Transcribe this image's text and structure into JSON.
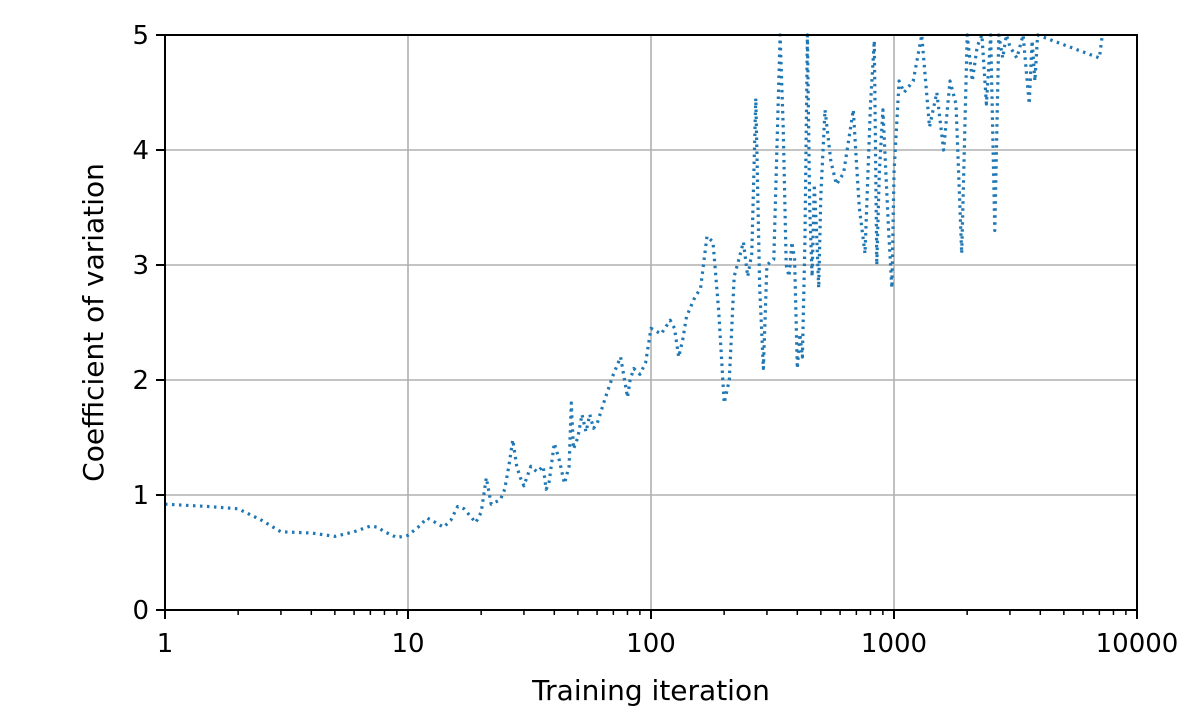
{
  "chart_data": {
    "type": "line",
    "title": "",
    "xlabel": "Training iteration",
    "ylabel": "Coefficient of variation",
    "x_scale": "log",
    "xlim": [
      1,
      10000
    ],
    "ylim": [
      0,
      5
    ],
    "x_ticks": [
      1,
      10,
      100,
      1000,
      10000
    ],
    "x_tick_labels": [
      "1",
      "10",
      "100",
      "1000",
      "10000"
    ],
    "y_ticks": [
      0,
      1,
      2,
      3,
      4,
      5
    ],
    "y_tick_labels": [
      "0",
      "1",
      "2",
      "3",
      "4",
      "5"
    ],
    "grid": true,
    "line_style": "dotted",
    "series": [
      {
        "color": "#1f77b4",
        "x": [
          1,
          1.5,
          2,
          2.5,
          3,
          4,
          5,
          6,
          7,
          7.5,
          8,
          9,
          10,
          11,
          12,
          13,
          14,
          15,
          16,
          17,
          18,
          19,
          20,
          21,
          22,
          24,
          25,
          26,
          27,
          28,
          29,
          30,
          32,
          34,
          36,
          37,
          38,
          40,
          42,
          43,
          44,
          46,
          47,
          48,
          49,
          50,
          52,
          54,
          56,
          58,
          60,
          65,
          70,
          75,
          80,
          82,
          85,
          90,
          95,
          100,
          110,
          120,
          125,
          130,
          135,
          140,
          150,
          160,
          170,
          180,
          190,
          200,
          210,
          220,
          230,
          240,
          250,
          260,
          270,
          280,
          290,
          300,
          320,
          340,
          350,
          360,
          370,
          380,
          390,
          400,
          410,
          420,
          430,
          440,
          450,
          460,
          470,
          480,
          490,
          500,
          520,
          550,
          580,
          620,
          680,
          700,
          720,
          760,
          800,
          830,
          850,
          870,
          900,
          950,
          980,
          1000,
          1050,
          1100,
          1200,
          1300,
          1400,
          1500,
          1600,
          1700,
          1800,
          1900,
          2000,
          2100,
          2200,
          2300,
          2400,
          2500,
          2600,
          2700,
          2800,
          2900,
          3000,
          3200,
          3400,
          3600,
          3700,
          3800,
          3900,
          7000,
          7200
        ],
        "values": [
          0.92,
          0.9,
          0.88,
          0.78,
          0.68,
          0.67,
          0.64,
          0.68,
          0.73,
          0.72,
          0.68,
          0.63,
          0.65,
          0.72,
          0.8,
          0.76,
          0.72,
          0.78,
          0.9,
          0.88,
          0.82,
          0.76,
          0.85,
          1.15,
          0.92,
          0.96,
          1.05,
          1.25,
          1.48,
          1.25,
          1.15,
          1.08,
          1.25,
          1.2,
          1.25,
          1.05,
          1.1,
          1.45,
          1.3,
          1.2,
          1.1,
          1.25,
          1.8,
          1.4,
          1.45,
          1.5,
          1.7,
          1.55,
          1.7,
          1.58,
          1.62,
          1.85,
          2.05,
          2.2,
          1.85,
          2.0,
          2.1,
          2.05,
          2.15,
          2.45,
          2.4,
          2.52,
          2.45,
          2.2,
          2.35,
          2.55,
          2.7,
          2.8,
          3.25,
          3.2,
          2.6,
          1.8,
          2.0,
          2.9,
          3.05,
          3.2,
          2.9,
          3.1,
          4.45,
          2.8,
          2.1,
          3.0,
          3.05,
          5.0,
          4.2,
          3.0,
          2.9,
          3.2,
          3.05,
          2.1,
          2.4,
          2.2,
          3.2,
          5.0,
          3.5,
          2.9,
          3.7,
          3.3,
          2.8,
          3.6,
          4.35,
          3.9,
          3.7,
          3.8,
          4.35,
          3.9,
          3.5,
          3.1,
          4.4,
          4.95,
          3.0,
          3.8,
          4.35,
          3.3,
          2.8,
          3.8,
          4.6,
          4.5,
          4.6,
          5.0,
          4.2,
          4.5,
          4.0,
          4.6,
          4.4,
          3.1,
          5.0,
          4.6,
          4.9,
          5.0,
          4.4,
          5.0,
          3.3,
          5.0,
          4.8,
          5.0,
          4.9,
          4.8,
          5.0,
          4.4,
          4.95,
          4.6,
          5.0,
          4.8,
          5.0
        ]
      }
    ]
  }
}
